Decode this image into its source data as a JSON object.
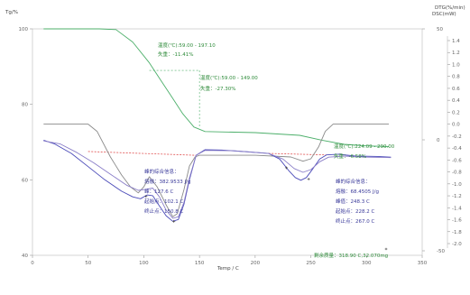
{
  "chart_data": {
    "type": "line",
    "xlabel": "Temp / C",
    "ylabel_left": "Tg/%",
    "ylabel_right_top": "DTG(%/min)",
    "ylabel_right_bottom": "DSC(mW)",
    "xlim": [
      0,
      350
    ],
    "ylim_left": [
      40,
      100
    ],
    "ylim_dtg": [
      -2.0,
      1.4
    ],
    "ylim_dsc": [
      -50,
      50
    ],
    "x_ticks": [
      "0",
      "50",
      "100",
      "150",
      "200",
      "250",
      "300",
      "350"
    ],
    "left_ticks": [
      "40",
      "60",
      "80",
      "100"
    ],
    "dtg_ticks": [
      "1.4",
      "1.2",
      "1.0",
      "0.8",
      "0.6",
      "0.4",
      "0.2",
      "0.0",
      "-0.2",
      "-0.4",
      "-0.6",
      "-0.8",
      "-1.0",
      "-1.2",
      "-1.4",
      "-1.6",
      "-1.8",
      "-2.0"
    ],
    "dsc_ticks": [
      "50",
      "0",
      "-50"
    ],
    "colors": {
      "tg": "#4caf6a",
      "dtg": "#8a8a8a",
      "dsc": "#4a4ab8",
      "dsc_alt": "#8a7ec8",
      "baseline": "#e05050",
      "annotation_green": "#2e8b3a",
      "annotation_blue": "#3a3a9a"
    },
    "series": [
      {
        "name": "TG",
        "axis": "left",
        "points": [
          [
            10,
            100
          ],
          [
            60,
            100
          ],
          [
            75,
            99.8
          ],
          [
            90,
            96.5
          ],
          [
            105,
            91
          ],
          [
            115,
            86.5
          ],
          [
            125,
            82
          ],
          [
            135,
            77.5
          ],
          [
            145,
            74
          ],
          [
            155,
            72.8
          ],
          [
            200,
            72.5
          ],
          [
            240,
            71.8
          ],
          [
            260,
            70.5
          ],
          [
            280,
            69.4
          ],
          [
            300,
            69.0
          ],
          [
            320,
            68.8
          ]
        ]
      },
      {
        "name": "DTG",
        "axis": "dtg",
        "points": [
          [
            10,
            0.0
          ],
          [
            50,
            0.0
          ],
          [
            58,
            -0.12
          ],
          [
            70,
            -0.55
          ],
          [
            80,
            -0.85
          ],
          [
            88,
            -1.05
          ],
          [
            95,
            -1.15
          ],
          [
            100,
            -1.05
          ],
          [
            105,
            -0.88
          ],
          [
            112,
            -1.05
          ],
          [
            120,
            -1.35
          ],
          [
            126,
            -1.55
          ],
          [
            130,
            -1.5
          ],
          [
            136,
            -1.1
          ],
          [
            141,
            -0.7
          ],
          [
            146,
            -0.55
          ],
          [
            150,
            -0.52
          ],
          [
            200,
            -0.52
          ],
          [
            232,
            -0.55
          ],
          [
            243,
            -0.62
          ],
          [
            250,
            -0.58
          ],
          [
            257,
            -0.38
          ],
          [
            263,
            -0.12
          ],
          [
            270,
            0.0
          ],
          [
            320,
            0.0
          ]
        ]
      },
      {
        "name": "DSC",
        "axis": "left",
        "points": [
          [
            10,
            70.5
          ],
          [
            20,
            69.5
          ],
          [
            35,
            67
          ],
          [
            50,
            63.5
          ],
          [
            65,
            60
          ],
          [
            80,
            57
          ],
          [
            90,
            55.5
          ],
          [
            97,
            55.0
          ],
          [
            103,
            56
          ],
          [
            108,
            55.8
          ],
          [
            113,
            53.5
          ],
          [
            120,
            50.5
          ],
          [
            126,
            49.0
          ],
          [
            131,
            49.5
          ],
          [
            136,
            53.5
          ],
          [
            141,
            60
          ],
          [
            147,
            66.5
          ],
          [
            155,
            68.0
          ],
          [
            170,
            67.9
          ],
          [
            190,
            67.5
          ],
          [
            212,
            67.0
          ],
          [
            222,
            65.5
          ],
          [
            230,
            62.5
          ],
          [
            236,
            60.6
          ],
          [
            241,
            59.9
          ],
          [
            246,
            60.6
          ],
          [
            252,
            63
          ],
          [
            258,
            65.5
          ],
          [
            264,
            66.6
          ],
          [
            275,
            66.8
          ],
          [
            290,
            66.3
          ],
          [
            310,
            66.2
          ],
          [
            322,
            66.0
          ]
        ]
      },
      {
        "name": "DSC-2",
        "axis": "left",
        "points": [
          [
            10,
            70.3
          ],
          [
            25,
            69.5
          ],
          [
            40,
            67.2
          ],
          [
            55,
            64.5
          ],
          [
            70,
            61.5
          ],
          [
            85,
            58.5
          ],
          [
            95,
            57.2
          ],
          [
            102,
            57.5
          ],
          [
            108,
            57.8
          ],
          [
            114,
            55.5
          ],
          [
            120,
            52
          ],
          [
            126,
            49.8
          ],
          [
            131,
            50.2
          ],
          [
            136,
            54
          ],
          [
            141,
            60.5
          ],
          [
            147,
            66.5
          ],
          [
            155,
            67.8
          ],
          [
            180,
            67.7
          ],
          [
            212,
            67.0
          ],
          [
            225,
            65.5
          ],
          [
            235,
            63
          ],
          [
            243,
            62
          ],
          [
            250,
            62.7
          ],
          [
            258,
            64.8
          ],
          [
            266,
            66
          ],
          [
            280,
            66.3
          ],
          [
            300,
            66.0
          ],
          [
            322,
            65.9
          ]
        ]
      }
    ],
    "baselines": [
      {
        "points": [
          [
            50,
            67.5
          ],
          [
            147,
            66.5
          ]
        ]
      },
      {
        "points": [
          [
            212,
            67.0
          ],
          [
            264,
            66.6
          ]
        ]
      }
    ],
    "guides": [
      {
        "from": [
          105,
          89
        ],
        "to": [
          150,
          89
        ]
      },
      {
        "from": [
          150,
          89
        ],
        "to": [
          150,
          74
        ]
      }
    ],
    "annotations": [
      {
        "lines": [
          "温度(℃):59.00 - 197.10",
          "失重：-11.41%"
        ],
        "color": "green"
      },
      {
        "lines": [
          "温度(℃):59.00 - 149.00",
          "失重：-27.30%"
        ],
        "color": "green"
      },
      {
        "lines": [
          "温度(℃):224.09 - 290.00",
          "失重：-6.58%"
        ],
        "color": "green"
      },
      {
        "lines": [
          "峰的综合信息：",
          "熔融：382.9533 J/g",
          "峰：127.6 C",
          "起始点：102.1 C",
          "终止点：150.8 C"
        ],
        "color": "blue"
      },
      {
        "lines": [
          "峰的综合信息：",
          "熔融：68.4505 J/g",
          "峰值：248.3 C",
          "起始点：228.2 C",
          "终止点：267.0 C"
        ],
        "color": "blue"
      },
      {
        "lines": [
          "剩余质量：318.90 C,32.070mg"
        ],
        "color": "green"
      }
    ]
  }
}
